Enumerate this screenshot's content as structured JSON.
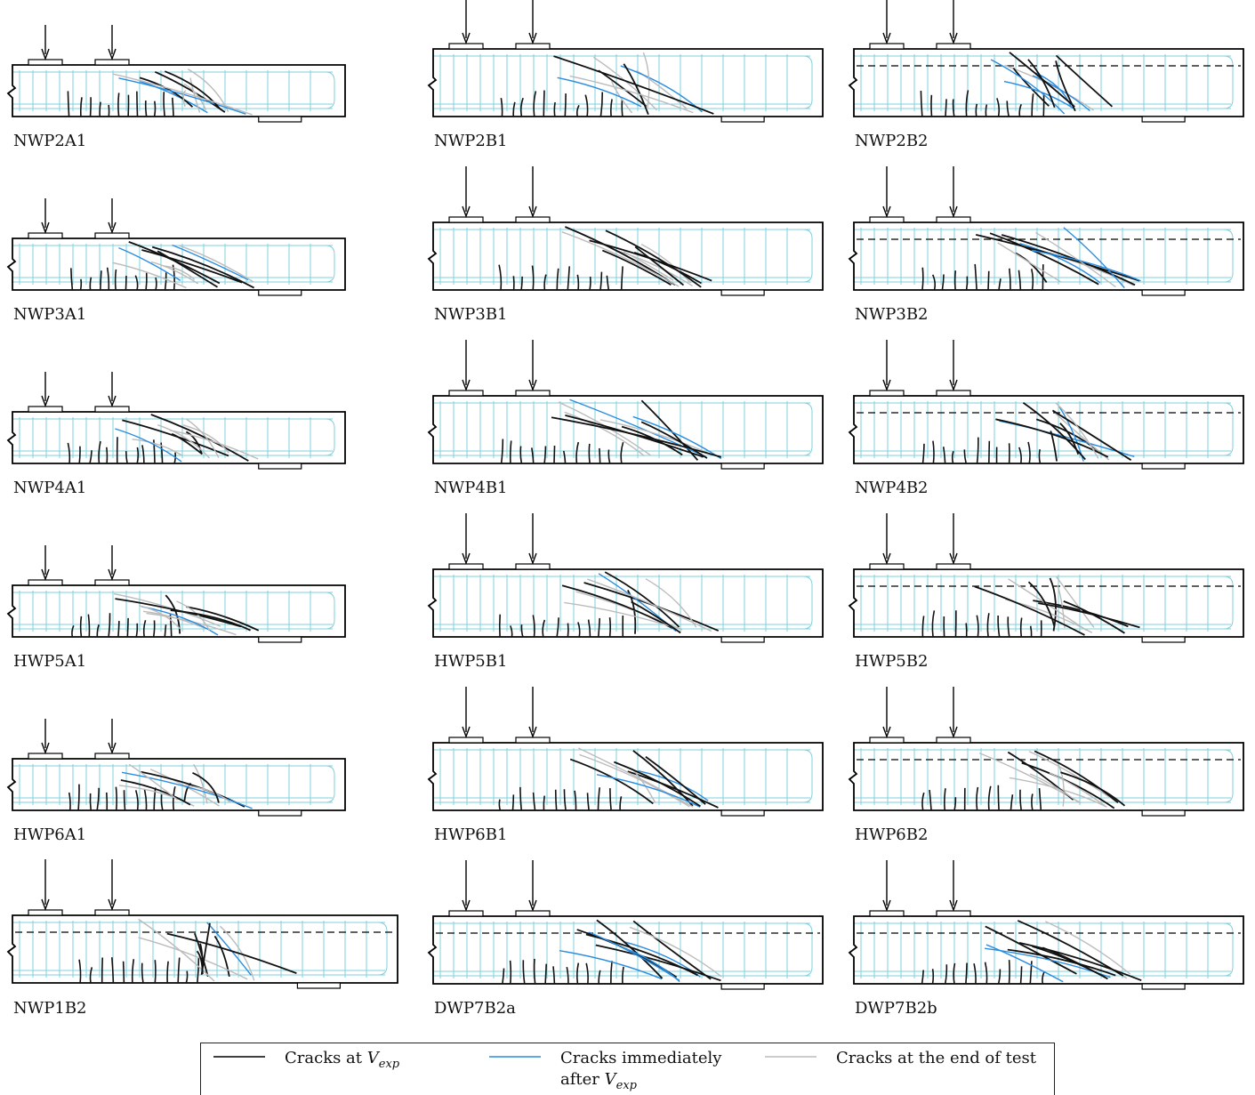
{
  "panels": [
    {
      "label": "NWP2A1"
    },
    {
      "label": "NWP2B1"
    },
    {
      "label": "NWP2B2"
    },
    {
      "label": "NWP3A1"
    },
    {
      "label": "NWP3B1"
    },
    {
      "label": "NWP3B2"
    },
    {
      "label": "NWP4A1"
    },
    {
      "label": "NWP4B1"
    },
    {
      "label": "NWP4B2"
    },
    {
      "label": "HWP5A1"
    },
    {
      "label": "HWP5B1"
    },
    {
      "label": "HWP5B2"
    },
    {
      "label": "HWP6A1"
    },
    {
      "label": "HWP6B1"
    },
    {
      "label": "HWP6B2"
    },
    {
      "label": "NWP1B2"
    },
    {
      "label": "DWP7B2a"
    },
    {
      "label": "DWP7B2b"
    }
  ],
  "legend": {
    "items": [
      {
        "text": "Cracks at",
        "symbol": "V",
        "subscript": "exp"
      },
      {
        "line1": "Cracks immediately",
        "text": "after",
        "symbol": "V",
        "subscript": "exp"
      },
      {
        "text": "Cracks at the end of test"
      }
    ]
  }
}
